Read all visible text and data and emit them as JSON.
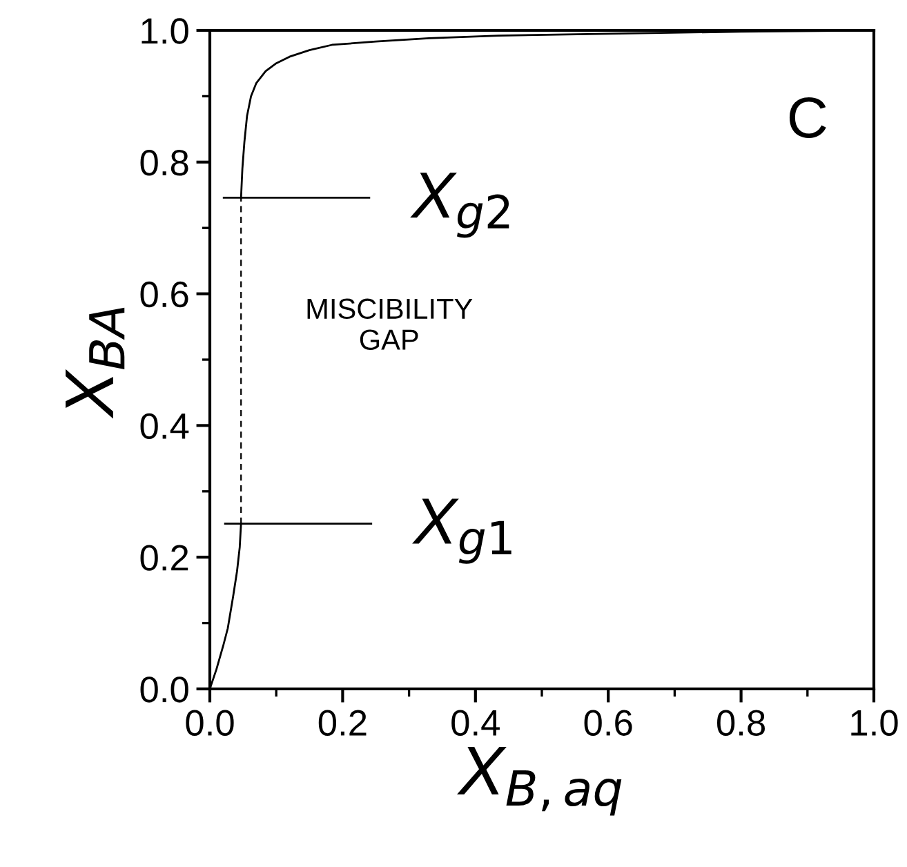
{
  "chart_data": {
    "type": "line",
    "xlabel": "X$_{B,aq}$",
    "ylabel": "X$_{BA}$",
    "xlim": [
      0,
      1
    ],
    "ylim": [
      0,
      1
    ],
    "xticks": [
      {
        "value": 0,
        "label": "0.0"
      },
      {
        "value": 0.2,
        "label": "0.2"
      },
      {
        "value": 0.4,
        "label": "0.4"
      },
      {
        "value": 0.6,
        "label": "0.6"
      },
      {
        "value": 0.8,
        "label": "0.8"
      },
      {
        "value": 1,
        "label": "1.0"
      }
    ],
    "yticks": [
      {
        "value": 0,
        "label": "0.0"
      },
      {
        "value": 0.2,
        "label": "0.2"
      },
      {
        "value": 0.4,
        "label": "0.4"
      },
      {
        "value": 0.6,
        "label": "0.6"
      },
      {
        "value": 0.8,
        "label": "0.8"
      },
      {
        "value": 1,
        "label": "1.0"
      }
    ],
    "grid": false,
    "legend": false,
    "marker": "none",
    "series": [
      {
        "color": "#000000",
        "line_style": "solid",
        "x": [
          0,
          0.01,
          0.02,
          0.027,
          0.035,
          0.041,
          0.045,
          0.047
        ],
        "values": [
          0,
          0.03,
          0.065,
          0.092,
          0.14,
          0.179,
          0.215,
          0.251
        ]
      },
      {
        "color": "#000000",
        "line_style": "dashed",
        "x": [
          0.047,
          0.047
        ],
        "values": [
          0.251,
          0.746
        ]
      },
      {
        "color": "#000000",
        "line_style": "solid",
        "x": [
          0.047,
          0.049,
          0.052,
          0.056,
          0.062,
          0.07,
          0.084,
          0.1,
          0.12,
          0.15,
          0.184,
          0.25,
          0.33,
          0.435,
          0.6,
          0.8,
          1.0
        ],
        "values": [
          0.746,
          0.79,
          0.83,
          0.87,
          0.9,
          0.92,
          0.938,
          0.95,
          0.96,
          0.97,
          0.978,
          0.983,
          0.988,
          0.992,
          0.995,
          0.998,
          1.0
        ]
      },
      {
        "color": "#000000",
        "line_style": "solid",
        "x": [
          0.021,
          0.24
        ],
        "values": [
          0.746,
          0.746
        ]
      },
      {
        "color": "#000000",
        "line_style": "solid",
        "x": [
          0.023,
          0.243
        ],
        "values": [
          0.251,
          0.251
        ]
      }
    ],
    "annotations": [
      {
        "text": "X$_{g2}$",
        "x": 0.24,
        "y": 0.746
      },
      {
        "text": "X$_{g1}$",
        "x": 0.243,
        "y": 0.251
      },
      "MISCIBILITY\nGAP",
      "C"
    ]
  }
}
